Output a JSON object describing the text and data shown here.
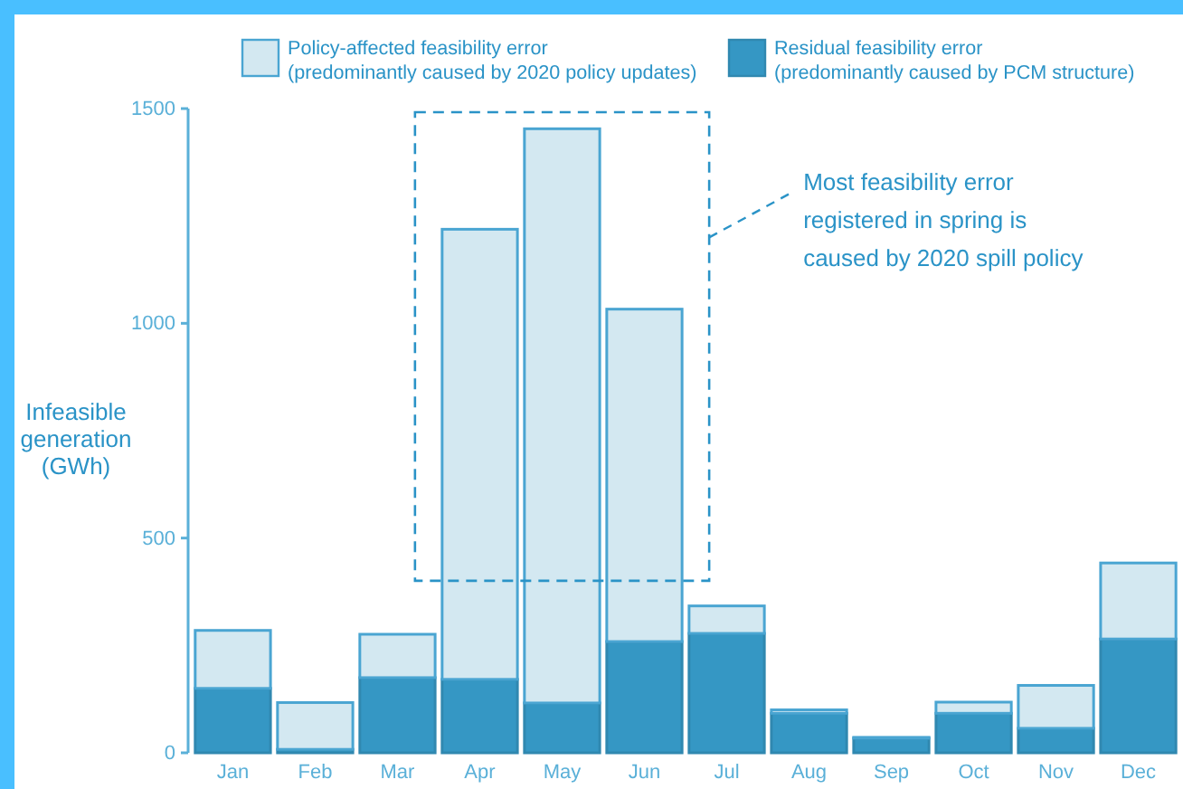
{
  "chart_data": {
    "type": "bar",
    "stacked": true,
    "categories": [
      "Jan",
      "Feb",
      "Mar",
      "Apr",
      "May",
      "Jun",
      "Jul",
      "Aug",
      "Sep",
      "Oct",
      "Nov",
      "Dec"
    ],
    "series": [
      {
        "name": "Residual feasibility error\n(predominantly caused by PCM structure)",
        "color": "#3597c4",
        "values": [
          150,
          8,
          175,
          171,
          116,
          259,
          278,
          92,
          34,
          92,
          57,
          265
        ]
      },
      {
        "name": "Policy-affected feasibility error\n(predominantly caused by 2020 policy updates)",
        "color": "#d3e8f1",
        "values": [
          135,
          109,
          101,
          1048,
          1337,
          774,
          64,
          8,
          2,
          26,
          100,
          177
        ]
      }
    ],
    "ylabel": "Infeasible\ngeneration\n(GWh)",
    "ylim": [
      0,
      1500
    ],
    "yticks": [
      0,
      500,
      1000,
      1500
    ],
    "legend": "top",
    "annotations": [
      "Most feasibility error\nregistered in spring is\ncaused by 2020 spill policy"
    ]
  }
}
